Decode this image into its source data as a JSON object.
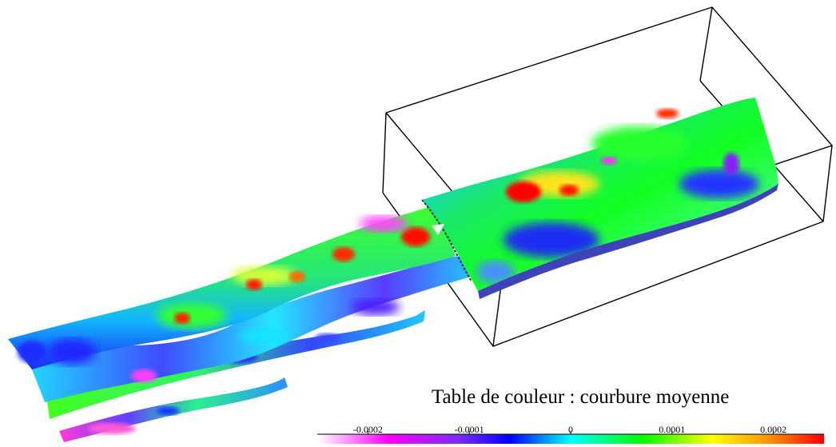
{
  "figure": {
    "description_hidden": ""
  },
  "legend": {
    "title": "Table de couleur : courbure moyenne",
    "ticks": [
      "-0.0002",
      "-0.0001",
      "0",
      "0.0001",
      "0.0002"
    ],
    "tick_values": [
      -0.0002,
      -0.0001,
      0,
      0.0001,
      0.0002
    ],
    "range": [
      -0.00025,
      0.00025
    ],
    "colors": [
      "#ffffff",
      "#ff00ff",
      "#7a2cff",
      "#0000ff",
      "#00ffff",
      "#00ff00",
      "#ffff00",
      "#ff8800",
      "#ff0000"
    ]
  }
}
